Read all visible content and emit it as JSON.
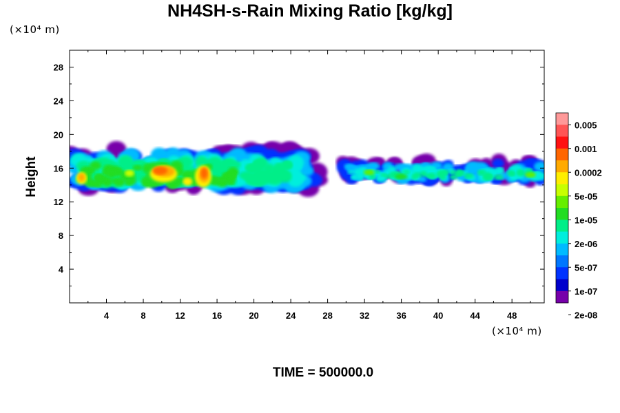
{
  "chart_data": {
    "type": "heatmap",
    "title": "NH4SH-s-Rain Mixing Ratio [kg/kg]",
    "ylabel": "Height",
    "x_unit": "(×10⁴ m)",
    "y_unit": "(×10⁴ m)",
    "footer": "TIME = 500000.0",
    "xlim": [
      0,
      51.5
    ],
    "ylim": [
      0,
      30
    ],
    "x_ticks": [
      "4",
      "8",
      "12",
      "16",
      "20",
      "24",
      "28",
      "32",
      "36",
      "40",
      "44",
      "48"
    ],
    "y_ticks": [
      "4",
      "8",
      "12",
      "16",
      "20",
      "24",
      "28"
    ],
    "colorbar": {
      "labels": [
        "0.005",
        "0.001",
        "0.0002",
        "5e-05",
        "1e-05",
        "2e-06",
        "5e-07",
        "1e-07",
        "2e-08"
      ],
      "colors": [
        "#ff9999",
        "#ff5555",
        "#ff1111",
        "#ff6600",
        "#ffaa00",
        "#ffee00",
        "#c8ff00",
        "#66ee00",
        "#22dd22",
        "#00ee88",
        "#00eedd",
        "#00bbff",
        "#0077ff",
        "#0033ff",
        "#0000cc",
        "#7700aa"
      ]
    },
    "field_regions": [
      {
        "x_range": [
          0,
          27
        ],
        "y_range": [
          13,
          19
        ],
        "max_level": "0.0002"
      },
      {
        "x_range": [
          30,
          51.5
        ],
        "y_range": [
          14,
          18
        ],
        "max_level": "1e-05"
      }
    ]
  }
}
